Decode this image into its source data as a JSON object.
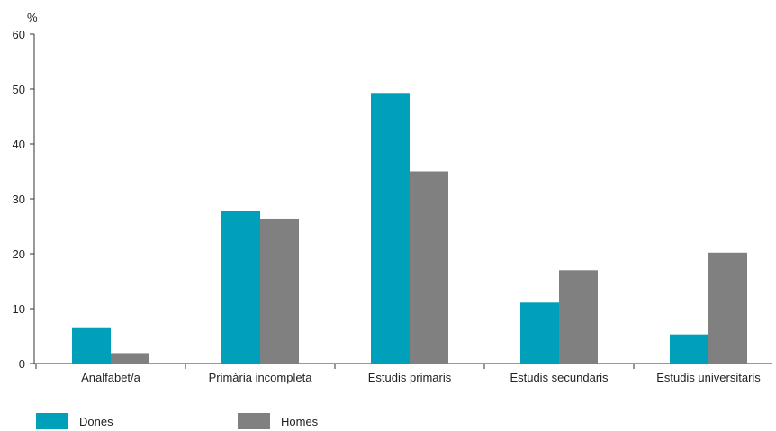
{
  "chart_data": {
    "type": "bar",
    "ylabel": "%",
    "ylim": [
      0,
      60
    ],
    "yticks": [
      0,
      10,
      20,
      30,
      40,
      50,
      60
    ],
    "categories": [
      "Analfabet/a",
      "Primària incompleta",
      "Estudis primaris",
      "Estudis secundaris",
      "Estudis universitaris"
    ],
    "series": [
      {
        "name": "Dones",
        "color": "#00a0ba",
        "values": [
          6.6,
          27.8,
          49.3,
          11.1,
          5.3
        ]
      },
      {
        "name": "Homes",
        "color": "#808080",
        "values": [
          1.9,
          26.4,
          35.0,
          17.0,
          20.2
        ]
      }
    ],
    "legend_position": "bottom-left",
    "grid": false
  }
}
